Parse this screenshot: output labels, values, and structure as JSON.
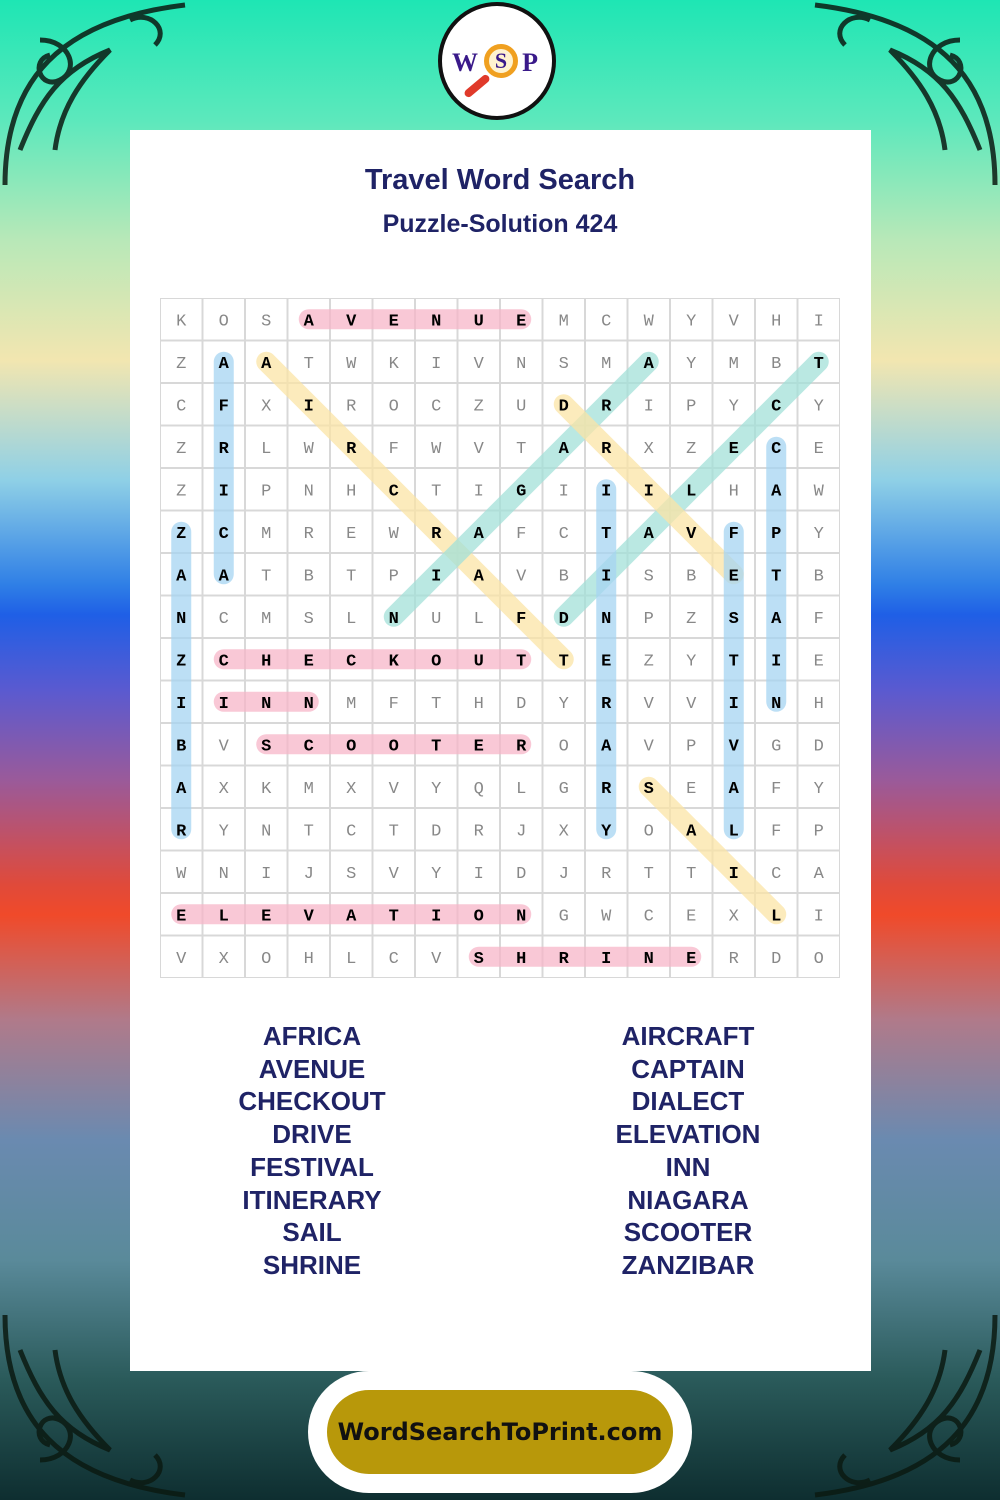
{
  "logo": {
    "letters": [
      "W",
      "S",
      "P"
    ]
  },
  "header": {
    "title": "Travel Word Search",
    "subtitle": "Puzzle-Solution 424"
  },
  "grid": [
    "KOSAVENUEMCWYVHI",
    "ZAATWKIVNSMAYMBT",
    "CFXIROCZUDRIPYCY",
    "ZRLWRFWVTARXZECE",
    "ZIPNHCTIGIIILHAW",
    "ZCMREWRAFCTAVFPY",
    "AATBTPIAVBISBETB",
    "NCMSLNULFDNPZSAF",
    "ZCHECKOUTTEZYTIE",
    "IINNMFTHDYRVVINH",
    "BVSCOOTEROAVPVGD",
    "AXKMXVYQLGRSEAFY",
    "RYNTCTDRJXYOALFP",
    "WNIJSVYIDJRTTICA",
    "ELEVATIONGWCEXLI",
    "VXOHLCVSHRINERDO"
  ],
  "solutions": [
    {
      "word": "AVENUE",
      "start": [
        0,
        3
      ],
      "end": [
        0,
        8
      ],
      "color": "#f7b6c8"
    },
    {
      "word": "AFRICA",
      "start": [
        1,
        1
      ],
      "end": [
        6,
        1
      ],
      "color": "#a6d4f2"
    },
    {
      "word": "AIRCRAFT",
      "start": [
        1,
        2
      ],
      "end": [
        8,
        9
      ],
      "color": "#fbe4a6"
    },
    {
      "word": "NIAGARA",
      "start": [
        7,
        5
      ],
      "end": [
        1,
        11
      ],
      "color": "#a3e0d8"
    },
    {
      "word": "DIALECT",
      "start": [
        7,
        9
      ],
      "end": [
        1,
        15
      ],
      "color": "#a3e0d8"
    },
    {
      "word": "DRIVE",
      "start": [
        2,
        9
      ],
      "end": [
        6,
        13
      ],
      "color": "#fbe4a6"
    },
    {
      "word": "CAPTAIN",
      "start": [
        3,
        14
      ],
      "end": [
        9,
        14
      ],
      "color": "#a6d4f2"
    },
    {
      "word": "ITINERARY",
      "start": [
        4,
        10
      ],
      "end": [
        12,
        10
      ],
      "color": "#a6d4f2"
    },
    {
      "word": "FESTIVAL",
      "start": [
        5,
        13
      ],
      "end": [
        12,
        13
      ],
      "color": "#a6d4f2"
    },
    {
      "word": "ZANZIBAR",
      "start": [
        5,
        0
      ],
      "end": [
        12,
        0
      ],
      "color": "#a6d4f2"
    },
    {
      "word": "CHECKOUT",
      "start": [
        8,
        1
      ],
      "end": [
        8,
        8
      ],
      "color": "#f7b6c8"
    },
    {
      "word": "INN",
      "start": [
        9,
        1
      ],
      "end": [
        9,
        3
      ],
      "color": "#f7b6c8"
    },
    {
      "word": "SCOOTER",
      "start": [
        10,
        2
      ],
      "end": [
        10,
        8
      ],
      "color": "#f7b6c8"
    },
    {
      "word": "SAIL",
      "start": [
        11,
        11
      ],
      "end": [
        14,
        14
      ],
      "color": "#fbe4a6"
    },
    {
      "word": "ELEVATION",
      "start": [
        14,
        0
      ],
      "end": [
        14,
        8
      ],
      "color": "#f7b6c8"
    },
    {
      "word": "SHRINE",
      "start": [
        15,
        7
      ],
      "end": [
        15,
        12
      ],
      "color": "#f7b6c8"
    }
  ],
  "word_list": {
    "left": [
      "AFRICA",
      "AVENUE",
      "CHECKOUT",
      "DRIVE",
      "FESTIVAL",
      "ITINERARY",
      "SAIL",
      "SHRINE"
    ],
    "right": [
      "AIRCRAFT",
      "CAPTAIN",
      "DIALECT",
      "ELEVATION",
      "INN",
      "NIAGARA",
      "SCOOTER",
      "ZANZIBAR"
    ]
  },
  "footer": {
    "site": "WordSearchToPrint.com",
    "button_color": "#b8980a"
  }
}
